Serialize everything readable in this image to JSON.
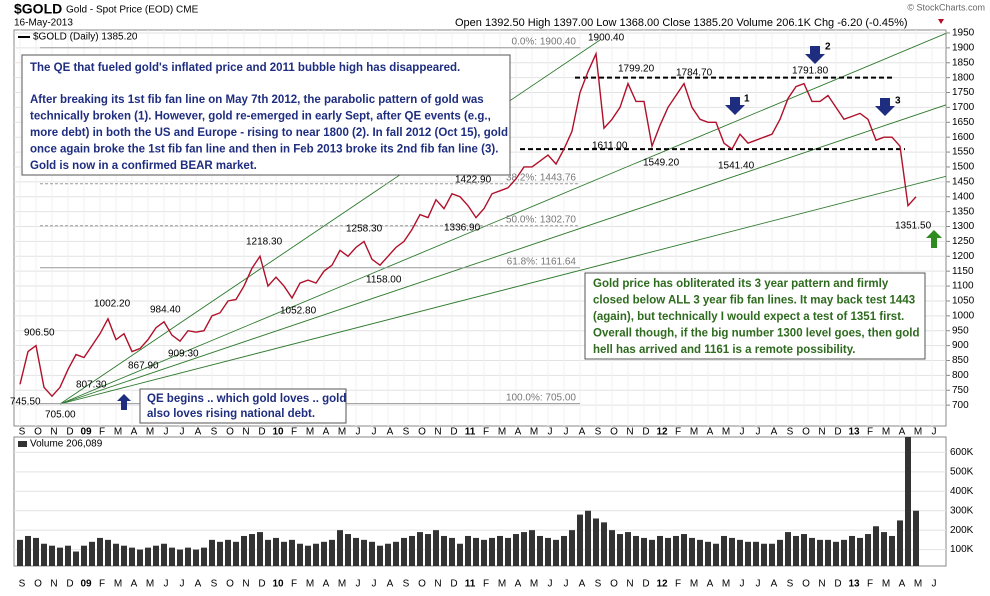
{
  "chart_data": {
    "type": "line",
    "symbol": "$GOLD",
    "name": "Gold - Spot Price (EOD) CME",
    "date": "16-May-2013",
    "quote": "Open 1392.50  High 1397.00  Low 1368.00  Close 1385.20  Volume 206.1K  Chg -6.20 (-0.45%)",
    "copyright": "© StockCharts.com",
    "legend": "$GOLD (Daily) 1385.20",
    "volume_legend": "Volume 206,089",
    "categories": [
      "S",
      null,
      "O",
      null,
      "N",
      null,
      "D",
      null,
      "09",
      null,
      "F",
      null,
      "M",
      null,
      "A",
      null,
      "M",
      null,
      "J",
      null,
      "J",
      null,
      "A",
      null,
      "S",
      null,
      "O",
      null,
      "N",
      null,
      "D",
      null,
      "10",
      null,
      "F",
      null,
      "M",
      null,
      "A",
      null,
      "M",
      null,
      "J",
      null,
      "J",
      null,
      "A",
      null,
      "S",
      null,
      "O",
      null,
      "N",
      null,
      "D",
      null,
      "11",
      null,
      "F",
      null,
      "M",
      null,
      "A",
      null,
      "M",
      null,
      "J",
      null,
      "J",
      null,
      "A",
      null,
      "S",
      null,
      "O",
      null,
      "N",
      null,
      "D",
      null,
      "12",
      null,
      "F",
      null,
      "M",
      null,
      "A",
      null,
      "M",
      null,
      "J",
      null,
      "J",
      null,
      "A",
      null,
      "S",
      null,
      "O",
      null,
      "N",
      null,
      "D",
      null,
      "13",
      null,
      "F",
      null,
      "M",
      null,
      "A",
      null,
      "M",
      null,
      "J",
      null
    ],
    "series": [
      {
        "name": "$GOLD",
        "color": "#b0102a",
        "values": [
          770,
          880,
          900,
          760,
          730,
          760,
          820,
          870,
          860,
          900,
          940,
          990,
          920,
          940,
          880,
          890,
          920,
          960,
          980,
          935,
          915,
          950,
          945,
          950,
          1000,
          1010,
          1050,
          1055,
          1100,
          1160,
          1200,
          1100,
          1130,
          1100,
          1060,
          1110,
          1120,
          1110,
          1150,
          1170,
          1220,
          1200,
          1230,
          1250,
          1190,
          1170,
          1200,
          1230,
          1250,
          1290,
          1340,
          1330,
          1390,
          1360,
          1410,
          1400,
          1370,
          1330,
          1360,
          1410,
          1420,
          1430,
          1460,
          1500,
          1500,
          1520,
          1540,
          1510,
          1560,
          1620,
          1750,
          1820,
          1880,
          1630,
          1660,
          1700,
          1780,
          1720,
          1720,
          1570,
          1640,
          1700,
          1740,
          1780,
          1700,
          1660,
          1650,
          1650,
          1580,
          1560,
          1610,
          1580,
          1590,
          1600,
          1610,
          1660,
          1730,
          1770,
          1780,
          1720,
          1720,
          1740,
          1700,
          1660,
          1670,
          1680,
          1660,
          1590,
          1600,
          1600,
          1570,
          1370,
          1400,
          null,
          null,
          null
        ]
      }
    ],
    "ylim": [
      630,
      1960
    ],
    "yticks": [
      700,
      750,
      800,
      850,
      900,
      950,
      1000,
      1050,
      1100,
      1150,
      1200,
      1250,
      1300,
      1350,
      1400,
      1450,
      1500,
      1550,
      1600,
      1650,
      1700,
      1750,
      1800,
      1850,
      1900,
      1950
    ],
    "grid": true,
    "volume": {
      "type": "bar",
      "name": "Volume",
      "color": "#333333",
      "values": [
        150000,
        170000,
        160000,
        130000,
        120000,
        110000,
        120000,
        90000,
        120000,
        140000,
        160000,
        150000,
        130000,
        120000,
        110000,
        100000,
        110000,
        120000,
        130000,
        110000,
        100000,
        110000,
        100000,
        110000,
        150000,
        140000,
        150000,
        140000,
        170000,
        180000,
        190000,
        150000,
        160000,
        140000,
        150000,
        130000,
        120000,
        130000,
        140000,
        150000,
        200000,
        180000,
        160000,
        150000,
        140000,
        120000,
        130000,
        140000,
        160000,
        170000,
        190000,
        180000,
        200000,
        170000,
        160000,
        130000,
        170000,
        160000,
        150000,
        160000,
        170000,
        160000,
        180000,
        190000,
        200000,
        170000,
        160000,
        150000,
        170000,
        200000,
        280000,
        300000,
        260000,
        240000,
        200000,
        180000,
        190000,
        170000,
        160000,
        150000,
        170000,
        160000,
        170000,
        180000,
        160000,
        150000,
        140000,
        130000,
        170000,
        160000,
        150000,
        140000,
        140000,
        130000,
        130000,
        150000,
        190000,
        170000,
        180000,
        160000,
        150000,
        150000,
        140000,
        150000,
        170000,
        160000,
        180000,
        220000,
        190000,
        170000,
        250000,
        680000,
        300000,
        null,
        null,
        null
      ],
      "ylim": [
        0,
        700000
      ],
      "yticks": [
        {
          "value": 100000,
          "label": "100K"
        },
        {
          "value": 200000,
          "label": "200K"
        },
        {
          "value": 300000,
          "label": "300K"
        },
        {
          "value": 400000,
          "label": "400K"
        },
        {
          "value": 500000,
          "label": "500K"
        },
        {
          "value": 600000,
          "label": "600K"
        }
      ]
    },
    "fib_levels": [
      {
        "label": "0.0%: 1900.40",
        "value": 1900.4
      },
      {
        "label": "38.2%: 1443.76",
        "value": 1443.76
      },
      {
        "label": "50.0%: 1302.70",
        "value": 1302.7
      },
      {
        "label": "61.8%: 1161.64",
        "value": 1161.64
      },
      {
        "label": "100.0%: 705.00",
        "value": 705
      }
    ],
    "reference_lines": [
      1800,
      1560
    ],
    "point_labels": [
      "745.50",
      "906.50",
      "705.00",
      "807.30",
      "1002.20",
      "867.90",
      "984.40",
      "909.30",
      "1218.30",
      "1052.80",
      "1258.30",
      "1158.00",
      "1336.90",
      "1422.90",
      "1900.40",
      "1611.00",
      "1799.20",
      "1549.20",
      "1784.70",
      "1541.40",
      "1791.80",
      "1351.50"
    ],
    "arrow_labels": [
      "1",
      "2",
      "3"
    ],
    "note_left": {
      "headline": "The QE that fueled gold's inflated price and 2011 bubble high has disappeared.",
      "lines": [
        "After breaking its 1st fib fan line on May 7th 2012, the parabolic pattern of gold was",
        "technically broken (1).  However, gold re-emerged in early Sept, after QE events (e.g.,",
        "more debt) in both the US and Europe - rising to near 1800 (2).  In fall 2012 (Oct 15), gold",
        "once again broke the 1st fib fan line and then in Feb 2013 broke its 2nd fib fan line (3).",
        "Gold is now in a confirmed BEAR market."
      ]
    },
    "note_right": [
      "Gold price has obliterated its 3 year pattern and firmly",
      "closed below ALL 3 year fib fan lines.  It may back test 1443",
      "(again), but technically I would expect a test of 1351 first.",
      "Overall though, if the big number 1300 level goes, then gold",
      "hell has arrived and 1161 is a remote possibility."
    ],
    "note_qe": [
      "QE begins .. which gold loves .. gold",
      "also loves rising national debt."
    ]
  }
}
